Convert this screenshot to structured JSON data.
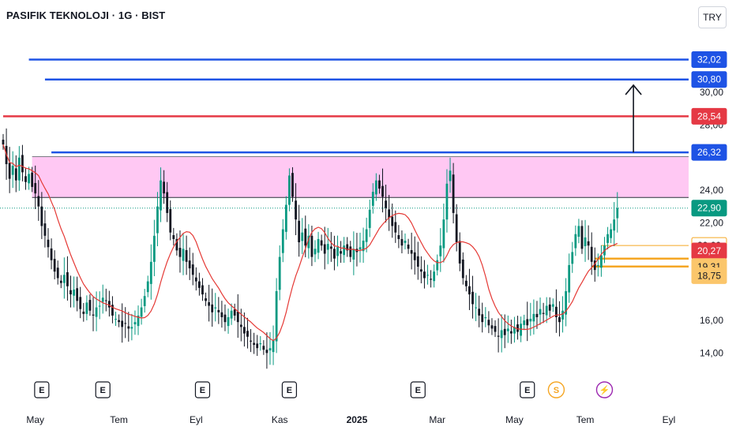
{
  "header": {
    "title": "PASIFIK TEKNOLOJI · 1G · BIST",
    "currency": "TRY"
  },
  "chart_data": {
    "type": "candlestick",
    "colors": {
      "up": "#089981",
      "down": "#131722",
      "ma": "#e53935",
      "zone": "#ffc8f3",
      "blue_line": "#1e53e5",
      "red_line": "#e53944",
      "orange_line": "#f5a623",
      "current_price": "#089981"
    },
    "y_axis": {
      "min": 13.0,
      "max": 33.5,
      "ticks": [
        {
          "value": 30.0,
          "label": "30,00"
        },
        {
          "value": 28.0,
          "label": "28,00"
        },
        {
          "value": 24.0,
          "label": "24,00"
        },
        {
          "value": 22.0,
          "label": "22,00"
        },
        {
          "value": 16.0,
          "label": "16,00"
        },
        {
          "value": 14.0,
          "label": "14,00"
        }
      ]
    },
    "x_axis": {
      "ticks": [
        {
          "label": "May",
          "bold": false,
          "bar": 10
        },
        {
          "label": "Tem",
          "bold": false,
          "bar": 36
        },
        {
          "label": "Eyl",
          "bold": false,
          "bar": 60
        },
        {
          "label": "Kas",
          "bold": false,
          "bar": 86
        },
        {
          "label": "2025",
          "bold": true,
          "bar": 110
        },
        {
          "label": "Mar",
          "bold": false,
          "bar": 135
        },
        {
          "label": "May",
          "bold": false,
          "bar": 159
        },
        {
          "label": "Tem",
          "bold": false,
          "bar": 181
        },
        {
          "label": "Eyl",
          "bold": false,
          "bar": 207
        }
      ]
    },
    "horizontal_lines": [
      {
        "value": 32.02,
        "label": "32,02",
        "color": "#1e53e5",
        "start_bar": 8,
        "style": "blue"
      },
      {
        "value": 30.8,
        "label": "30,80",
        "color": "#1e53e5",
        "start_bar": 13,
        "style": "blue"
      },
      {
        "value": 28.54,
        "label": "28,54",
        "color": "#e53944",
        "start_bar": 0,
        "style": "red"
      },
      {
        "value": 26.32,
        "label": "26,32",
        "color": "#1e53e5",
        "start_bar": 15,
        "style": "blue"
      }
    ],
    "resistance_zone": {
      "top": 26.05,
      "bottom": 23.55,
      "start_bar": 9
    },
    "target_arrow": {
      "bar": 196,
      "from": 26.32,
      "to": 30.45
    },
    "current_price": {
      "value": 22.9,
      "label": "22,90"
    },
    "price_tags": [
      {
        "value": 20.6,
        "label": "20,60",
        "kind": "orange-outline"
      },
      {
        "value": 20.27,
        "label": "20,27",
        "kind": "red"
      },
      {
        "value": 19.31,
        "label": "19,31",
        "kind": "orange-solid"
      },
      {
        "value": 18.75,
        "label": "18,75",
        "kind": "orange-solid"
      }
    ],
    "orange_lines": [
      {
        "value": 20.6,
        "start_bar": 186,
        "thick": false
      },
      {
        "value": 19.8,
        "start_bar": 184,
        "thick": true
      },
      {
        "value": 19.31,
        "start_bar": 183,
        "thick": true
      }
    ],
    "events": [
      {
        "bar": 12,
        "symbol": "E",
        "kind": "earnings"
      },
      {
        "bar": 31,
        "symbol": "E",
        "kind": "earnings"
      },
      {
        "bar": 62,
        "symbol": "E",
        "kind": "earnings"
      },
      {
        "bar": 89,
        "symbol": "E",
        "kind": "earnings"
      },
      {
        "bar": 129,
        "symbol": "E",
        "kind": "earnings"
      },
      {
        "bar": 163,
        "symbol": "E",
        "kind": "earnings"
      },
      {
        "bar": 172,
        "symbol": "S",
        "kind": "split"
      },
      {
        "bar": 187,
        "symbol": "⚡",
        "kind": "flash"
      }
    ],
    "closes": [
      26.8,
      25.6,
      24.7,
      25.5,
      24.6,
      26.0,
      25.1,
      24.5,
      25.0,
      24.2,
      23.8,
      23.0,
      21.8,
      21.2,
      20.5,
      19.7,
      19.0,
      18.6,
      18.3,
      18.8,
      18.1,
      17.6,
      17.9,
      17.2,
      16.7,
      16.4,
      17.1,
      16.6,
      16.3,
      16.8,
      16.9,
      17.4,
      17.2,
      16.8,
      16.3,
      16.1,
      15.9,
      15.6,
      15.8,
      15.5,
      15.6,
      15.9,
      16.3,
      16.8,
      17.5,
      18.4,
      19.6,
      21.2,
      23.0,
      24.6,
      23.8,
      22.6,
      21.4,
      21.0,
      20.3,
      19.9,
      20.4,
      19.6,
      19.2,
      18.8,
      18.4,
      18.0,
      17.6,
      17.2,
      16.9,
      16.5,
      16.8,
      16.5,
      16.2,
      15.9,
      16.2,
      16.6,
      16.3,
      15.9,
      15.6,
      15.2,
      15.0,
      14.7,
      14.5,
      14.3,
      14.6,
      14.2,
      14.0,
      14.3,
      14.8,
      17.8,
      19.9,
      21.6,
      23.1,
      24.9,
      23.6,
      22.2,
      20.8,
      21.4,
      20.6,
      21.2,
      19.9,
      20.4,
      21.0,
      20.6,
      20.1,
      20.7,
      20.4,
      19.8,
      20.5,
      20.1,
      20.6,
      20.3,
      19.9,
      20.4,
      20.2,
      20.5,
      20.9,
      21.6,
      22.8,
      23.9,
      24.6,
      24.1,
      23.6,
      22.9,
      22.3,
      21.8,
      21.4,
      21.0,
      20.6,
      20.9,
      20.4,
      20.1,
      19.7,
      19.3,
      19.0,
      18.6,
      18.8,
      18.5,
      19.0,
      19.7,
      20.6,
      22.2,
      24.4,
      25.2,
      22.6,
      20.8,
      19.5,
      18.6,
      18.1,
      17.6,
      17.0,
      16.8,
      16.3,
      15.9,
      16.2,
      15.7,
      15.5,
      15.3,
      15.0,
      15.4,
      15.1,
      15.5,
      15.2,
      15.6,
      15.3,
      15.8,
      16.0,
      15.7,
      16.1,
      16.4,
      16.2,
      16.7,
      16.4,
      16.9,
      16.6,
      17.0,
      16.2,
      15.9,
      16.6,
      17.8,
      19.4,
      20.2,
      21.3,
      21.8,
      20.4,
      21.1,
      20.6,
      19.6,
      19.1,
      19.4,
      20.0,
      20.6,
      21.3,
      21.6,
      22.2,
      22.9
    ]
  }
}
